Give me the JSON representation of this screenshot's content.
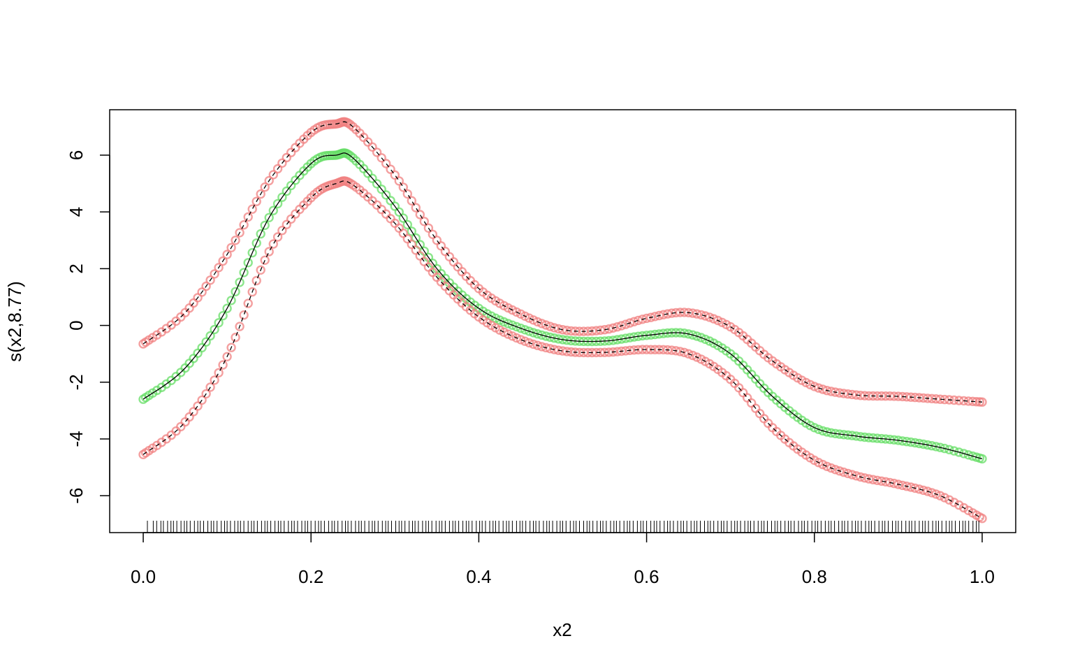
{
  "chart_data": {
    "type": "line",
    "title": "",
    "xlabel": "x2",
    "ylabel": "s(x2,8.77)",
    "xlim": [
      -0.04,
      1.04
    ],
    "ylim": [
      -7.3,
      7.6
    ],
    "x_ticks": [
      "0.0",
      "0.2",
      "0.4",
      "0.6",
      "0.8",
      "1.0"
    ],
    "y_ticks": [
      "-6",
      "-4",
      "-2",
      "0",
      "2",
      "4",
      "6"
    ],
    "grid": false,
    "legend": "none",
    "colors": {
      "upper_points": "#f08080",
      "lower_points": "#f08080",
      "fit_points": "#66dd66",
      "lines": "#000000"
    },
    "series": [
      {
        "role": "fit",
        "line_style": "solid",
        "x": [
          0.0,
          0.05,
          0.1,
          0.15,
          0.2,
          0.23,
          0.25,
          0.3,
          0.35,
          0.4,
          0.45,
          0.5,
          0.55,
          0.6,
          0.65,
          0.7,
          0.75,
          0.8,
          0.85,
          0.9,
          0.95,
          1.0
        ],
        "values": [
          -2.6,
          -1.5,
          0.6,
          3.8,
          5.7,
          6.0,
          5.9,
          4.2,
          2.0,
          0.6,
          -0.1,
          -0.5,
          -0.55,
          -0.35,
          -0.3,
          -1.0,
          -2.5,
          -3.6,
          -3.9,
          -4.05,
          -4.3,
          -4.7
        ]
      },
      {
        "role": "upper-band",
        "line_style": "dashed",
        "x": [
          0.0,
          0.05,
          0.1,
          0.15,
          0.2,
          0.23,
          0.25,
          0.3,
          0.35,
          0.4,
          0.45,
          0.5,
          0.55,
          0.6,
          0.65,
          0.7,
          0.75,
          0.8,
          0.85,
          0.9,
          0.95,
          1.0
        ],
        "values": [
          -0.65,
          0.45,
          2.5,
          5.1,
          6.8,
          7.1,
          7.0,
          5.3,
          3.0,
          1.3,
          0.4,
          -0.15,
          -0.15,
          0.25,
          0.45,
          -0.05,
          -1.25,
          -2.15,
          -2.45,
          -2.5,
          -2.6,
          -2.7
        ]
      },
      {
        "role": "lower-band",
        "line_style": "dashed",
        "x": [
          0.0,
          0.05,
          0.1,
          0.15,
          0.2,
          0.23,
          0.25,
          0.3,
          0.35,
          0.4,
          0.45,
          0.5,
          0.55,
          0.6,
          0.65,
          0.7,
          0.75,
          0.8,
          0.85,
          0.9,
          0.95,
          1.0
        ],
        "values": [
          -4.55,
          -3.4,
          -1.1,
          2.6,
          4.5,
          5.0,
          4.95,
          3.6,
          1.7,
          0.3,
          -0.5,
          -0.9,
          -0.95,
          -0.85,
          -1.0,
          -1.9,
          -3.6,
          -4.75,
          -5.3,
          -5.6,
          -6.0,
          -6.8
        ]
      }
    ],
    "rug": [
      0.005,
      0.012,
      0.016,
      0.021,
      0.024,
      0.029,
      0.033,
      0.036,
      0.04,
      0.045,
      0.049,
      0.052,
      0.056,
      0.061,
      0.065,
      0.068,
      0.072,
      0.077,
      0.081,
      0.084,
      0.088,
      0.093,
      0.097,
      0.1,
      0.104,
      0.109,
      0.113,
      0.116,
      0.12,
      0.125,
      0.129,
      0.132,
      0.136,
      0.141,
      0.145,
      0.148,
      0.152,
      0.157,
      0.161,
      0.164,
      0.168,
      0.173,
      0.177,
      0.18,
      0.184,
      0.189,
      0.193,
      0.196,
      0.2,
      0.205,
      0.209,
      0.212,
      0.216,
      0.221,
      0.225,
      0.228,
      0.232,
      0.237,
      0.241,
      0.244,
      0.248,
      0.253,
      0.257,
      0.26,
      0.264,
      0.269,
      0.273,
      0.276,
      0.28,
      0.285,
      0.289,
      0.292,
      0.296,
      0.301,
      0.305,
      0.308,
      0.312,
      0.317,
      0.321,
      0.324,
      0.328,
      0.333,
      0.337,
      0.34,
      0.344,
      0.349,
      0.353,
      0.356,
      0.36,
      0.365,
      0.369,
      0.372,
      0.376,
      0.381,
      0.385,
      0.388,
      0.392,
      0.397,
      0.401,
      0.404,
      0.408,
      0.413,
      0.417,
      0.42,
      0.424,
      0.429,
      0.433,
      0.436,
      0.44,
      0.445,
      0.449,
      0.452,
      0.456,
      0.461,
      0.465,
      0.468,
      0.472,
      0.477,
      0.481,
      0.484,
      0.488,
      0.493,
      0.497,
      0.5,
      0.504,
      0.509,
      0.513,
      0.516,
      0.52,
      0.525,
      0.529,
      0.532,
      0.536,
      0.541,
      0.545,
      0.548,
      0.552,
      0.557,
      0.561,
      0.564,
      0.568,
      0.573,
      0.577,
      0.58,
      0.584,
      0.589,
      0.593,
      0.596,
      0.6,
      0.605,
      0.609,
      0.612,
      0.616,
      0.621,
      0.625,
      0.628,
      0.632,
      0.637,
      0.641,
      0.644,
      0.648,
      0.653,
      0.657,
      0.66,
      0.664,
      0.669,
      0.673,
      0.676,
      0.68,
      0.685,
      0.689,
      0.692,
      0.696,
      0.701,
      0.705,
      0.708,
      0.712,
      0.717,
      0.721,
      0.724,
      0.728,
      0.733,
      0.737,
      0.74,
      0.744,
      0.749,
      0.753,
      0.756,
      0.76,
      0.765,
      0.769,
      0.772,
      0.776,
      0.781,
      0.785,
      0.788,
      0.792,
      0.797,
      0.801,
      0.804,
      0.808,
      0.813,
      0.817,
      0.82,
      0.824,
      0.829,
      0.833,
      0.836,
      0.84,
      0.845,
      0.849,
      0.852,
      0.856,
      0.861,
      0.865,
      0.868,
      0.872,
      0.877,
      0.881,
      0.884,
      0.888,
      0.893,
      0.897,
      0.9,
      0.904,
      0.909,
      0.913,
      0.916,
      0.92,
      0.925,
      0.929,
      0.932,
      0.936,
      0.941,
      0.945,
      0.948,
      0.952,
      0.957,
      0.961,
      0.964,
      0.968,
      0.973,
      0.977,
      0.98,
      0.984,
      0.989,
      0.993,
      0.996
    ]
  }
}
